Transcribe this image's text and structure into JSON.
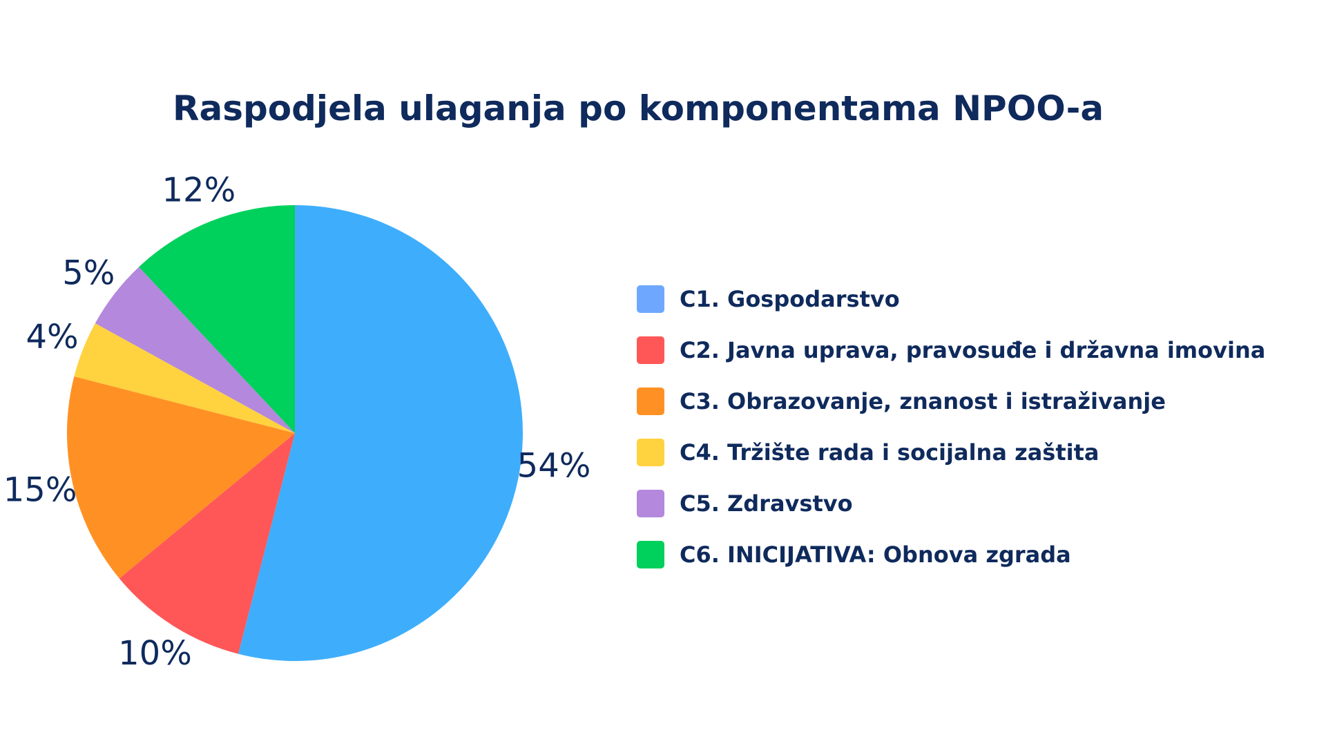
{
  "chart_data": {
    "type": "pie",
    "title": "Raspodjela ulaganja po komponentama NPOO-a",
    "unit": "%",
    "slices": [
      {
        "name": "C1. Gospodarstvo",
        "value": 54,
        "label": "54%",
        "color": "#3eaefc",
        "legend_color": "#6ea8fe"
      },
      {
        "name": "C2. Javna uprava, pravosuđe i državna imovina",
        "value": 10,
        "label": "10%",
        "color": "#ff5757",
        "legend_color": "#ff5757"
      },
      {
        "name": "C3. Obrazovanje, znanost i istraživanje",
        "value": 15,
        "label": "15%",
        "color": "#ff9124",
        "legend_color": "#ff9124"
      },
      {
        "name": "C4. Tržište rada i socijalna zaštita",
        "value": 4,
        "label": "4%",
        "color": "#ffd23f",
        "legend_color": "#ffd23f"
      },
      {
        "name": "C5. Zdravstvo",
        "value": 5,
        "label": "5%",
        "color": "#b388dd",
        "legend_color": "#b388dd"
      },
      {
        "name": "C6. INICIJATIVA: Obnova zgrada",
        "value": 12,
        "label": "12%",
        "color": "#00d05c",
        "legend_color": "#00d05c"
      }
    ],
    "start_angle": "12 o'clock",
    "direction": "clockwise",
    "legend_position": "right",
    "grid": false
  }
}
